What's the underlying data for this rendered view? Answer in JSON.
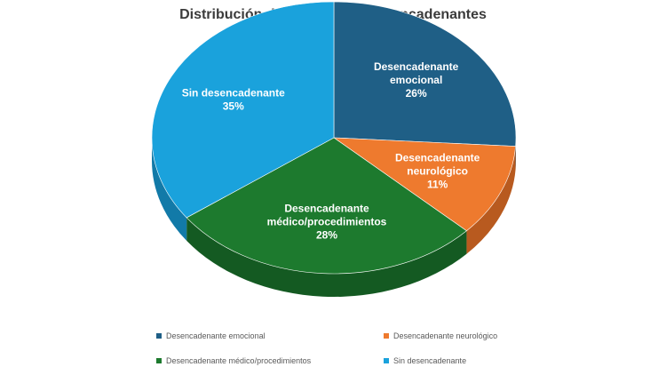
{
  "chart_data": {
    "type": "pie",
    "title": "Distribución del STT según desencadenantes",
    "slices": [
      {
        "label": "Desencadenante emocional",
        "value_label": "26%",
        "value": 26,
        "color": "#1f5f86",
        "side": "#164866",
        "label_lines": [
          "Desencadenante",
          "emocional"
        ]
      },
      {
        "label": "Desencadenante neurológico",
        "value_label": "11%",
        "value": 11,
        "color": "#ee7a2e",
        "side": "#b85a1f",
        "label_lines": [
          "Desencadenante",
          "neurológico"
        ]
      },
      {
        "label": "Desencadenante médico/procedimientos",
        "value_label": "28%",
        "value": 28,
        "color": "#1d7a2e",
        "side": "#145a22",
        "label_lines": [
          "Desencadenante",
          "médico/procedimientos"
        ]
      },
      {
        "label": "Sin desencadenante",
        "value_label": "35%",
        "value": 35,
        "color": "#1aa2dc",
        "side": "#127aa8",
        "label_lines": [
          "Sin desencadenante"
        ]
      }
    ],
    "legend_position": "bottom"
  }
}
